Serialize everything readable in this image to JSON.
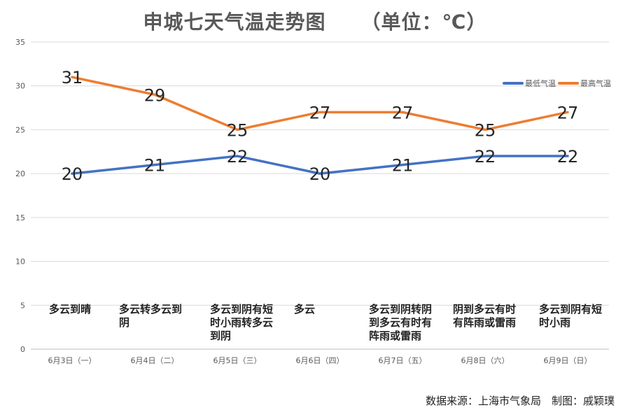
{
  "chart_data": {
    "type": "line",
    "title": "申城七天气温走势图",
    "unit": "（单位：℃）",
    "categories": [
      "6月3日（一）",
      "6月4日（二）",
      "6月5日（三）",
      "6月6日（四）",
      "6月7日（五）",
      "6月8日（六）",
      "6月9日（日）"
    ],
    "weather": [
      "多云到晴",
      "多云转多云到阴",
      "多云到阴有短时小雨转多云到阴",
      "多云",
      "多云到阴转阴到多云有时有阵雨或雷雨",
      "阴到多云有时有阵雨或雷雨",
      "多云到阴有短时小雨"
    ],
    "series": [
      {
        "name": "最低气温",
        "color": "#4472C4",
        "values": [
          20,
          21,
          22,
          20,
          21,
          22,
          22
        ]
      },
      {
        "name": "最高气温",
        "color": "#ED7D31",
        "values": [
          31,
          29,
          25,
          27,
          27,
          25,
          27
        ]
      }
    ],
    "ylim": [
      0,
      35
    ],
    "yticks": [
      0,
      5,
      10,
      15,
      20,
      25,
      30,
      35
    ],
    "grid": true,
    "legend": "top-right",
    "source": "数据来源：上海市气象局　制图：戚颖璞"
  }
}
